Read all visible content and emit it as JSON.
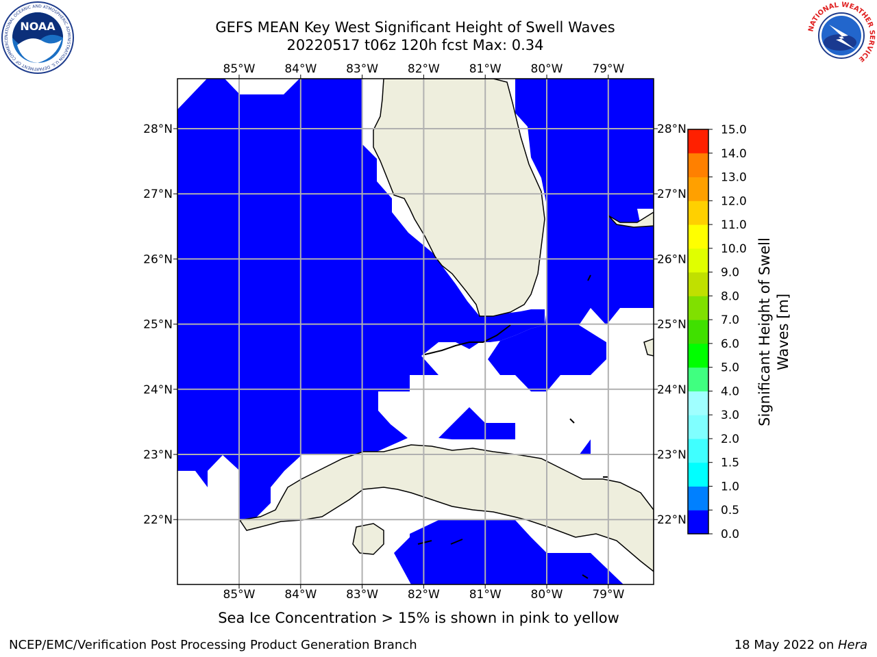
{
  "header": {
    "title_line1": "GEFS MEAN Key West Significant Height of Swell Waves",
    "title_line2": "20220517 t06z 120h fcst   Max: 0.34"
  },
  "logos": {
    "noaa": {
      "icon": "noaa-logo-icon",
      "text": "NOAA",
      "ring_text": "NATIONAL OCEANIC AND ATMOSPHERIC ADMINISTRATION  U.S. DEPARTMENT OF COMMERCE"
    },
    "nws": {
      "icon": "nws-logo-icon",
      "ring_text": "NATIONAL WEATHER SERVICE"
    }
  },
  "map": {
    "lon_ticks": [
      "85°W",
      "84°W",
      "83°W",
      "82°W",
      "81°W",
      "80°W",
      "79°W"
    ],
    "lat_ticks": [
      "28°N",
      "27°N",
      "26°N",
      "25°N",
      "24°N",
      "23°N",
      "22°N"
    ],
    "colors": {
      "ocean_fill": "#0000ff",
      "land": "#eeeedd",
      "no_data": "#ffffff",
      "grid": "#b0b0b0"
    }
  },
  "colorbar": {
    "label_line1": "Significant Height of Swell",
    "label_line2": "Waves [m]",
    "ticks": [
      "0.0",
      "0.5",
      "1.0",
      "1.5",
      "2.0",
      "3.0",
      "4.0",
      "5.0",
      "6.0",
      "7.0",
      "8.0",
      "9.0",
      "10.0",
      "11.0",
      "12.0",
      "13.0",
      "14.0",
      "15.0"
    ],
    "colors": [
      "#0000ff",
      "#0080ff",
      "#00ffff",
      "#40ffff",
      "#80ffff",
      "#a0ffff",
      "#40ff80",
      "#00ff00",
      "#40e000",
      "#80e000",
      "#c0e000",
      "#e0ff00",
      "#ffff00",
      "#ffd000",
      "#ffa000",
      "#ff8000",
      "#ff5000",
      "#ff2000"
    ]
  },
  "footer": {
    "note": "Sea Ice Concentration > 15% is shown in pink to yellow",
    "left": "NCEP/EMC/Verification Post Processing Product Generation Branch",
    "right_prefix": "18 May 2022 on ",
    "right_host": "Hera"
  }
}
